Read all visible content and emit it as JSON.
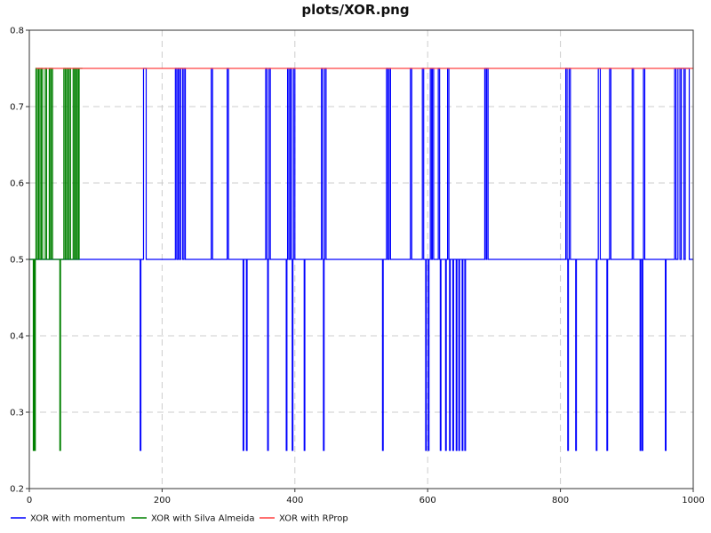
{
  "chart_data": {
    "type": "line",
    "title": "plots/XOR.png",
    "xlabel": "",
    "ylabel": "",
    "xlim": [
      0,
      1000
    ],
    "ylim": [
      0.2,
      0.8
    ],
    "x_ticks": [
      0,
      200,
      400,
      600,
      800,
      1000
    ],
    "y_ticks": [
      0.2,
      0.3,
      0.4,
      0.5,
      0.6,
      0.7,
      0.8
    ],
    "grid": true,
    "legend_position": "bottom",
    "series": [
      {
        "name": "XOR with momentum",
        "color": "#0000ff",
        "points": [
          [
            0,
            0.5
          ],
          [
            167,
            0.5
          ],
          [
            167,
            0.25
          ],
          [
            168,
            0.25
          ],
          [
            168,
            0.5
          ],
          [
            172,
            0.5
          ],
          [
            172,
            0.75
          ],
          [
            176,
            0.75
          ],
          [
            176,
            0.5
          ],
          [
            220,
            0.5
          ],
          [
            220,
            0.75
          ],
          [
            222,
            0.75
          ],
          [
            222,
            0.5
          ],
          [
            224,
            0.5
          ],
          [
            224,
            0.75
          ],
          [
            226,
            0.75
          ],
          [
            226,
            0.5
          ],
          [
            228,
            0.5
          ],
          [
            228,
            0.75
          ],
          [
            231,
            0.75
          ],
          [
            231,
            0.5
          ],
          [
            233,
            0.5
          ],
          [
            233,
            0.75
          ],
          [
            235,
            0.75
          ],
          [
            235,
            0.5
          ],
          [
            274,
            0.5
          ],
          [
            274,
            0.75
          ],
          [
            276,
            0.75
          ],
          [
            276,
            0.5
          ],
          [
            298,
            0.5
          ],
          [
            298,
            0.75
          ],
          [
            300,
            0.75
          ],
          [
            300,
            0.5
          ],
          [
            322,
            0.5
          ],
          [
            322,
            0.25
          ],
          [
            323,
            0.25
          ],
          [
            323,
            0.5
          ],
          [
            327,
            0.5
          ],
          [
            327,
            0.25
          ],
          [
            328,
            0.25
          ],
          [
            328,
            0.5
          ],
          [
            356,
            0.5
          ],
          [
            356,
            0.75
          ],
          [
            358,
            0.75
          ],
          [
            358,
            0.5
          ],
          [
            359,
            0.5
          ],
          [
            359,
            0.25
          ],
          [
            360,
            0.25
          ],
          [
            360,
            0.5
          ],
          [
            361,
            0.5
          ],
          [
            361,
            0.75
          ],
          [
            363,
            0.75
          ],
          [
            363,
            0.5
          ],
          [
            387,
            0.5
          ],
          [
            387,
            0.25
          ],
          [
            388,
            0.25
          ],
          [
            388,
            0.5
          ],
          [
            389,
            0.5
          ],
          [
            389,
            0.75
          ],
          [
            391,
            0.75
          ],
          [
            391,
            0.5
          ],
          [
            393,
            0.5
          ],
          [
            393,
            0.75
          ],
          [
            395,
            0.75
          ],
          [
            395,
            0.5
          ],
          [
            396,
            0.5
          ],
          [
            396,
            0.25
          ],
          [
            397,
            0.25
          ],
          [
            397,
            0.5
          ],
          [
            398,
            0.5
          ],
          [
            398,
            0.75
          ],
          [
            400,
            0.75
          ],
          [
            400,
            0.5
          ],
          [
            414,
            0.5
          ],
          [
            414,
            0.25
          ],
          [
            415,
            0.25
          ],
          [
            415,
            0.5
          ],
          [
            440,
            0.5
          ],
          [
            440,
            0.75
          ],
          [
            442,
            0.75
          ],
          [
            442,
            0.5
          ],
          [
            443,
            0.5
          ],
          [
            443,
            0.25
          ],
          [
            444,
            0.25
          ],
          [
            444,
            0.5
          ],
          [
            445,
            0.5
          ],
          [
            445,
            0.75
          ],
          [
            447,
            0.75
          ],
          [
            447,
            0.5
          ],
          [
            532,
            0.5
          ],
          [
            532,
            0.25
          ],
          [
            533,
            0.25
          ],
          [
            533,
            0.5
          ],
          [
            538,
            0.5
          ],
          [
            538,
            0.75
          ],
          [
            540,
            0.75
          ],
          [
            540,
            0.5
          ],
          [
            542,
            0.5
          ],
          [
            542,
            0.75
          ],
          [
            544,
            0.75
          ],
          [
            544,
            0.5
          ],
          [
            574,
            0.5
          ],
          [
            574,
            0.75
          ],
          [
            576,
            0.75
          ],
          [
            576,
            0.5
          ],
          [
            592,
            0.5
          ],
          [
            592,
            0.75
          ],
          [
            594,
            0.75
          ],
          [
            594,
            0.5
          ],
          [
            597,
            0.5
          ],
          [
            597,
            0.25
          ],
          [
            598,
            0.25
          ],
          [
            598,
            0.5
          ],
          [
            601,
            0.5
          ],
          [
            601,
            0.25
          ],
          [
            602,
            0.25
          ],
          [
            602,
            0.5
          ],
          [
            604,
            0.5
          ],
          [
            604,
            0.75
          ],
          [
            606,
            0.75
          ],
          [
            606,
            0.5
          ],
          [
            607,
            0.5
          ],
          [
            607,
            0.75
          ],
          [
            609,
            0.75
          ],
          [
            609,
            0.5
          ],
          [
            616,
            0.5
          ],
          [
            616,
            0.75
          ],
          [
            618,
            0.75
          ],
          [
            618,
            0.5
          ],
          [
            619,
            0.5
          ],
          [
            619,
            0.25
          ],
          [
            620,
            0.25
          ],
          [
            620,
            0.5
          ],
          [
            627,
            0.5
          ],
          [
            627,
            0.25
          ],
          [
            628,
            0.25
          ],
          [
            628,
            0.5
          ],
          [
            630,
            0.5
          ],
          [
            630,
            0.75
          ],
          [
            632,
            0.75
          ],
          [
            632,
            0.5
          ],
          [
            633,
            0.5
          ],
          [
            633,
            0.25
          ],
          [
            634,
            0.25
          ],
          [
            634,
            0.5
          ],
          [
            638,
            0.5
          ],
          [
            638,
            0.25
          ],
          [
            639,
            0.25
          ],
          [
            639,
            0.5
          ],
          [
            643,
            0.5
          ],
          [
            643,
            0.25
          ],
          [
            644,
            0.25
          ],
          [
            644,
            0.5
          ],
          [
            647,
            0.5
          ],
          [
            647,
            0.25
          ],
          [
            648,
            0.25
          ],
          [
            648,
            0.5
          ],
          [
            652,
            0.5
          ],
          [
            652,
            0.25
          ],
          [
            653,
            0.25
          ],
          [
            653,
            0.5
          ],
          [
            656,
            0.5
          ],
          [
            656,
            0.25
          ],
          [
            657,
            0.25
          ],
          [
            657,
            0.5
          ],
          [
            686,
            0.5
          ],
          [
            686,
            0.75
          ],
          [
            688,
            0.75
          ],
          [
            688,
            0.5
          ],
          [
            689,
            0.5
          ],
          [
            689,
            0.75
          ],
          [
            691,
            0.75
          ],
          [
            691,
            0.5
          ],
          [
            808,
            0.5
          ],
          [
            808,
            0.75
          ],
          [
            810,
            0.75
          ],
          [
            810,
            0.5
          ],
          [
            811,
            0.5
          ],
          [
            811,
            0.25
          ],
          [
            812,
            0.25
          ],
          [
            812,
            0.5
          ],
          [
            813,
            0.5
          ],
          [
            813,
            0.75
          ],
          [
            815,
            0.75
          ],
          [
            815,
            0.5
          ],
          [
            823,
            0.5
          ],
          [
            823,
            0.25
          ],
          [
            824,
            0.25
          ],
          [
            824,
            0.5
          ],
          [
            854,
            0.5
          ],
          [
            854,
            0.25
          ],
          [
            855,
            0.25
          ],
          [
            855,
            0.5
          ],
          [
            857,
            0.5
          ],
          [
            857,
            0.75
          ],
          [
            860,
            0.75
          ],
          [
            860,
            0.5
          ],
          [
            870,
            0.5
          ],
          [
            870,
            0.25
          ],
          [
            871,
            0.25
          ],
          [
            871,
            0.5
          ],
          [
            874,
            0.5
          ],
          [
            874,
            0.75
          ],
          [
            876,
            0.75
          ],
          [
            876,
            0.5
          ],
          [
            908,
            0.5
          ],
          [
            908,
            0.75
          ],
          [
            910,
            0.75
          ],
          [
            910,
            0.5
          ],
          [
            920,
            0.5
          ],
          [
            920,
            0.25
          ],
          [
            921,
            0.25
          ],
          [
            921,
            0.5
          ],
          [
            923,
            0.5
          ],
          [
            923,
            0.25
          ],
          [
            924,
            0.25
          ],
          [
            924,
            0.5
          ],
          [
            925,
            0.5
          ],
          [
            925,
            0.75
          ],
          [
            927,
            0.75
          ],
          [
            927,
            0.5
          ],
          [
            958,
            0.5
          ],
          [
            958,
            0.25
          ],
          [
            959,
            0.25
          ],
          [
            959,
            0.5
          ],
          [
            972,
            0.5
          ],
          [
            972,
            0.75
          ],
          [
            974,
            0.75
          ],
          [
            974,
            0.5
          ],
          [
            977,
            0.5
          ],
          [
            977,
            0.75
          ],
          [
            980,
            0.75
          ],
          [
            980,
            0.5
          ],
          [
            982,
            0.5
          ],
          [
            982,
            0.75
          ],
          [
            986,
            0.75
          ],
          [
            986,
            0.5
          ],
          [
            988,
            0.5
          ],
          [
            988,
            0.75
          ],
          [
            994,
            0.75
          ],
          [
            994,
            0.5
          ],
          [
            1000,
            0.5
          ]
        ]
      },
      {
        "name": "XOR with Silva Almeida",
        "color": "#008000",
        "points": [
          [
            0,
            0.5
          ],
          [
            6,
            0.5
          ],
          [
            6,
            0.25
          ],
          [
            7,
            0.25
          ],
          [
            7,
            0.5
          ],
          [
            8,
            0.5
          ],
          [
            8,
            0.25
          ],
          [
            9,
            0.25
          ],
          [
            9,
            0.5
          ],
          [
            10,
            0.5
          ],
          [
            10,
            0.75
          ],
          [
            12,
            0.75
          ],
          [
            12,
            0.5
          ],
          [
            14,
            0.5
          ],
          [
            14,
            0.75
          ],
          [
            16,
            0.75
          ],
          [
            16,
            0.5
          ],
          [
            18,
            0.5
          ],
          [
            18,
            0.75
          ],
          [
            20,
            0.75
          ],
          [
            20,
            0.5
          ],
          [
            24,
            0.5
          ],
          [
            24,
            0.75
          ],
          [
            26,
            0.75
          ],
          [
            26,
            0.5
          ],
          [
            30,
            0.5
          ],
          [
            30,
            0.75
          ],
          [
            32,
            0.75
          ],
          [
            32,
            0.5
          ],
          [
            33,
            0.5
          ],
          [
            33,
            0.75
          ],
          [
            35,
            0.75
          ],
          [
            35,
            0.5
          ],
          [
            46,
            0.5
          ],
          [
            46,
            0.25
          ],
          [
            47,
            0.25
          ],
          [
            47,
            0.5
          ],
          [
            52,
            0.5
          ],
          [
            52,
            0.75
          ],
          [
            54,
            0.75
          ],
          [
            54,
            0.5
          ],
          [
            56,
            0.5
          ],
          [
            56,
            0.75
          ],
          [
            58,
            0.75
          ],
          [
            58,
            0.5
          ],
          [
            60,
            0.5
          ],
          [
            60,
            0.75
          ],
          [
            62,
            0.75
          ],
          [
            62,
            0.5
          ],
          [
            66,
            0.5
          ],
          [
            66,
            0.75
          ],
          [
            68,
            0.75
          ],
          [
            68,
            0.5
          ],
          [
            69,
            0.5
          ],
          [
            69,
            0.75
          ],
          [
            71,
            0.75
          ],
          [
            71,
            0.5
          ],
          [
            72,
            0.5
          ],
          [
            72,
            0.75
          ],
          [
            74,
            0.75
          ],
          [
            74,
            0.5
          ],
          [
            75,
            0.5
          ],
          [
            75,
            0.75
          ],
          [
            80,
            0.75
          ]
        ]
      },
      {
        "name": "XOR with RProp",
        "color": "#ff4040",
        "points": [
          [
            10,
            0.75
          ],
          [
            1000,
            0.75
          ]
        ]
      }
    ]
  }
}
